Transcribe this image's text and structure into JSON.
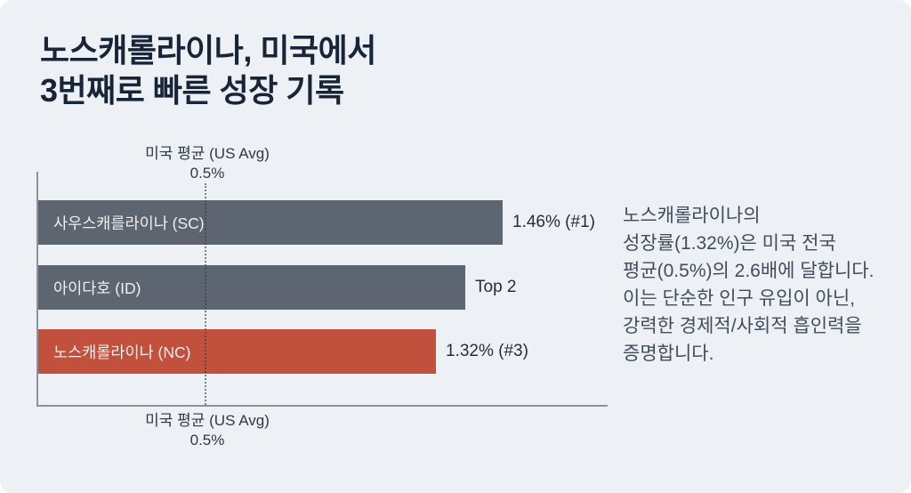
{
  "page": {
    "title_line1": "노스캐롤라이나, 미국에서",
    "title_line2": "3번째로 빠른 성장 기록"
  },
  "chart_data": {
    "type": "bar",
    "orientation": "horizontal",
    "categories": [
      "사우스캐를라이나 (SC)",
      "아이다호 (ID)",
      "노스캐롤라이나 (NC)"
    ],
    "values": [
      1.46,
      null,
      1.32
    ],
    "bar_value_labels": [
      "1.46% (#1)",
      "Top 2",
      "1.32% (#3)"
    ],
    "ranks": [
      1,
      2,
      3
    ],
    "base_color": "#5d6570",
    "highlight_color": "#c1503c",
    "bar_colors": [
      "#5d6570",
      "#5d6570",
      "#c1503c"
    ],
    "highlight_index": 2,
    "reference_line": {
      "label": "미국 평균 (US Avg)",
      "value_label": "0.5%",
      "value": 0.5,
      "style": "dotted",
      "shown_top_and_bottom": true
    },
    "axis_color": "#8d939b",
    "grid": false,
    "legend": false
  },
  "annotation": {
    "lines": [
      "노스캐롤라이나의",
      "성장률(1.32%)은 미국 전국",
      "평균(0.5%)의 2.6배에 달합니다.",
      "이는 단순한 인구 유입이 아닌,",
      "강력한 경제적/사회적 흡인력을",
      "증명합니다."
    ]
  },
  "colors": {
    "background": "#edf0f4",
    "title_text": "#182538",
    "bar_inner_label": "#eef0f2",
    "value_label": "#232e3c",
    "annotation_text": "#414d5c"
  }
}
